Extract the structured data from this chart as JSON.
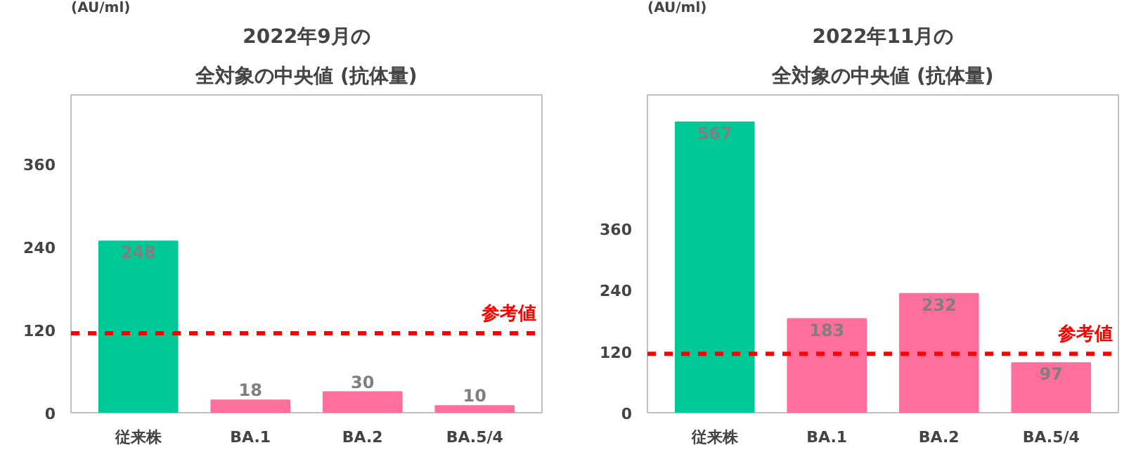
{
  "chart_data": [
    {
      "type": "bar",
      "title": "2022年9月の",
      "subtitle": "全対象の中央値 (抗体量)",
      "ylabel": "(AU/ml)",
      "categories": [
        "従来株",
        "BA.1",
        "BA.2",
        "BA.5/4"
      ],
      "values": [
        248,
        18,
        30,
        10
      ],
      "colors": [
        "#00c896",
        "#ff6f9c",
        "#ff6f9c",
        "#ff6f9c"
      ],
      "data_labels": true,
      "ylim": [
        0,
        460
      ],
      "yticks": [
        0,
        120,
        240,
        360
      ],
      "grid": false,
      "ref_lines": [
        {
          "axis": "y",
          "value": 115,
          "label": "参考値",
          "color": "#ff0000",
          "line_style": "dashed"
        }
      ]
    },
    {
      "type": "bar",
      "title": "2022年11月の",
      "subtitle": "全対象の中央値 (抗体量)",
      "ylabel": "(AU/ml)",
      "categories": [
        "従来株",
        "BA.1",
        "BA.2",
        "BA.5/4"
      ],
      "values": [
        567,
        183,
        232,
        97
      ],
      "colors": [
        "#00c896",
        "#ff6f9c",
        "#ff6f9c",
        "#ff6f9c"
      ],
      "data_labels": true,
      "ylim": [
        0,
        620
      ],
      "yticks": [
        0,
        120,
        240,
        360
      ],
      "grid": false,
      "ref_lines": [
        {
          "axis": "y",
          "value": 115,
          "label": "参考値",
          "color": "#ff0000",
          "line_style": "dashed"
        }
      ]
    }
  ]
}
